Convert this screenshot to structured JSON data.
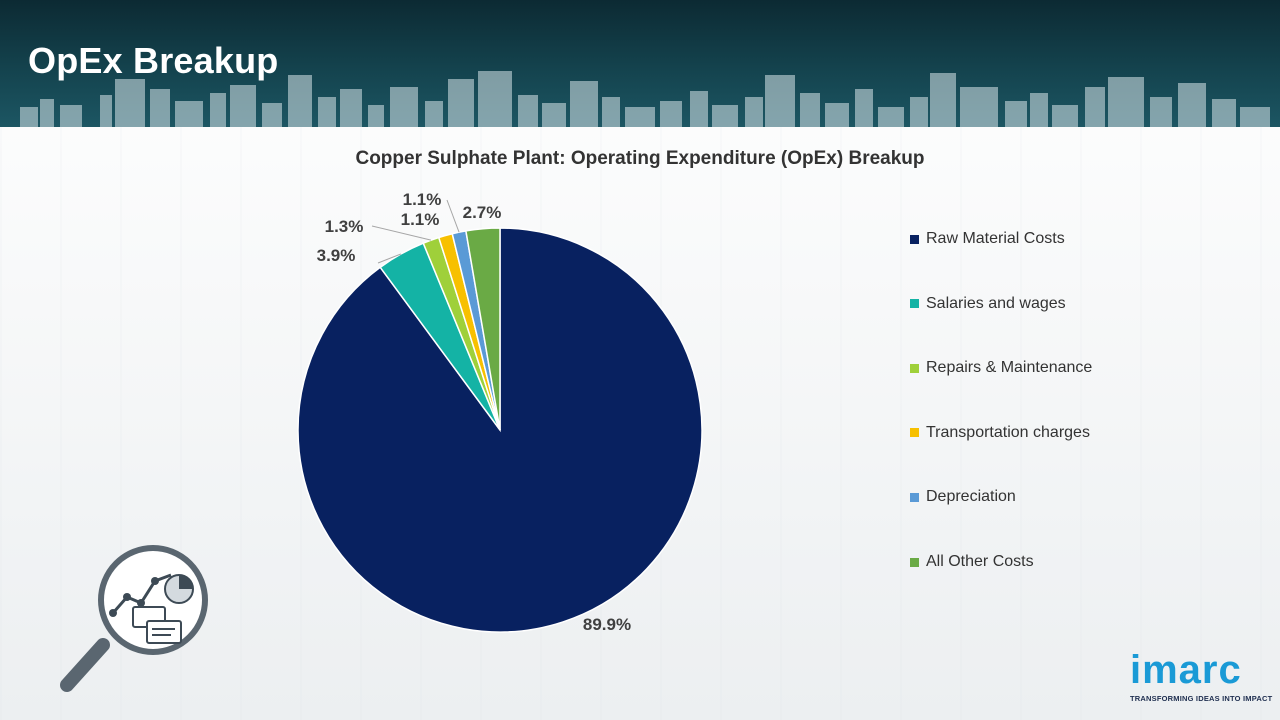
{
  "header": {
    "title": "OpEx Breakup"
  },
  "chart_data": {
    "type": "pie",
    "title": "Copper Sulphate Plant: Operating Expenditure (OpEx) Breakup",
    "categories": [
      "Raw Material Costs",
      "Salaries and wages",
      "Repairs & Maintenance",
      "Transportation charges",
      "Depreciation",
      "All Other Costs"
    ],
    "values": [
      89.9,
      3.9,
      1.3,
      1.1,
      1.1,
      2.7
    ],
    "data_labels": [
      "89.9%",
      "3.9%",
      "1.3%",
      "1.1%",
      "1.1%",
      "2.7%"
    ],
    "colors": [
      "#082160",
      "#14b3a5",
      "#9fd03a",
      "#f7c000",
      "#5a9ad6",
      "#6aaa45"
    ],
    "legend_position": "right"
  },
  "logo": {
    "word": "imarc",
    "tagline": "TRANSFORMING IDEAS INTO IMPACT"
  }
}
